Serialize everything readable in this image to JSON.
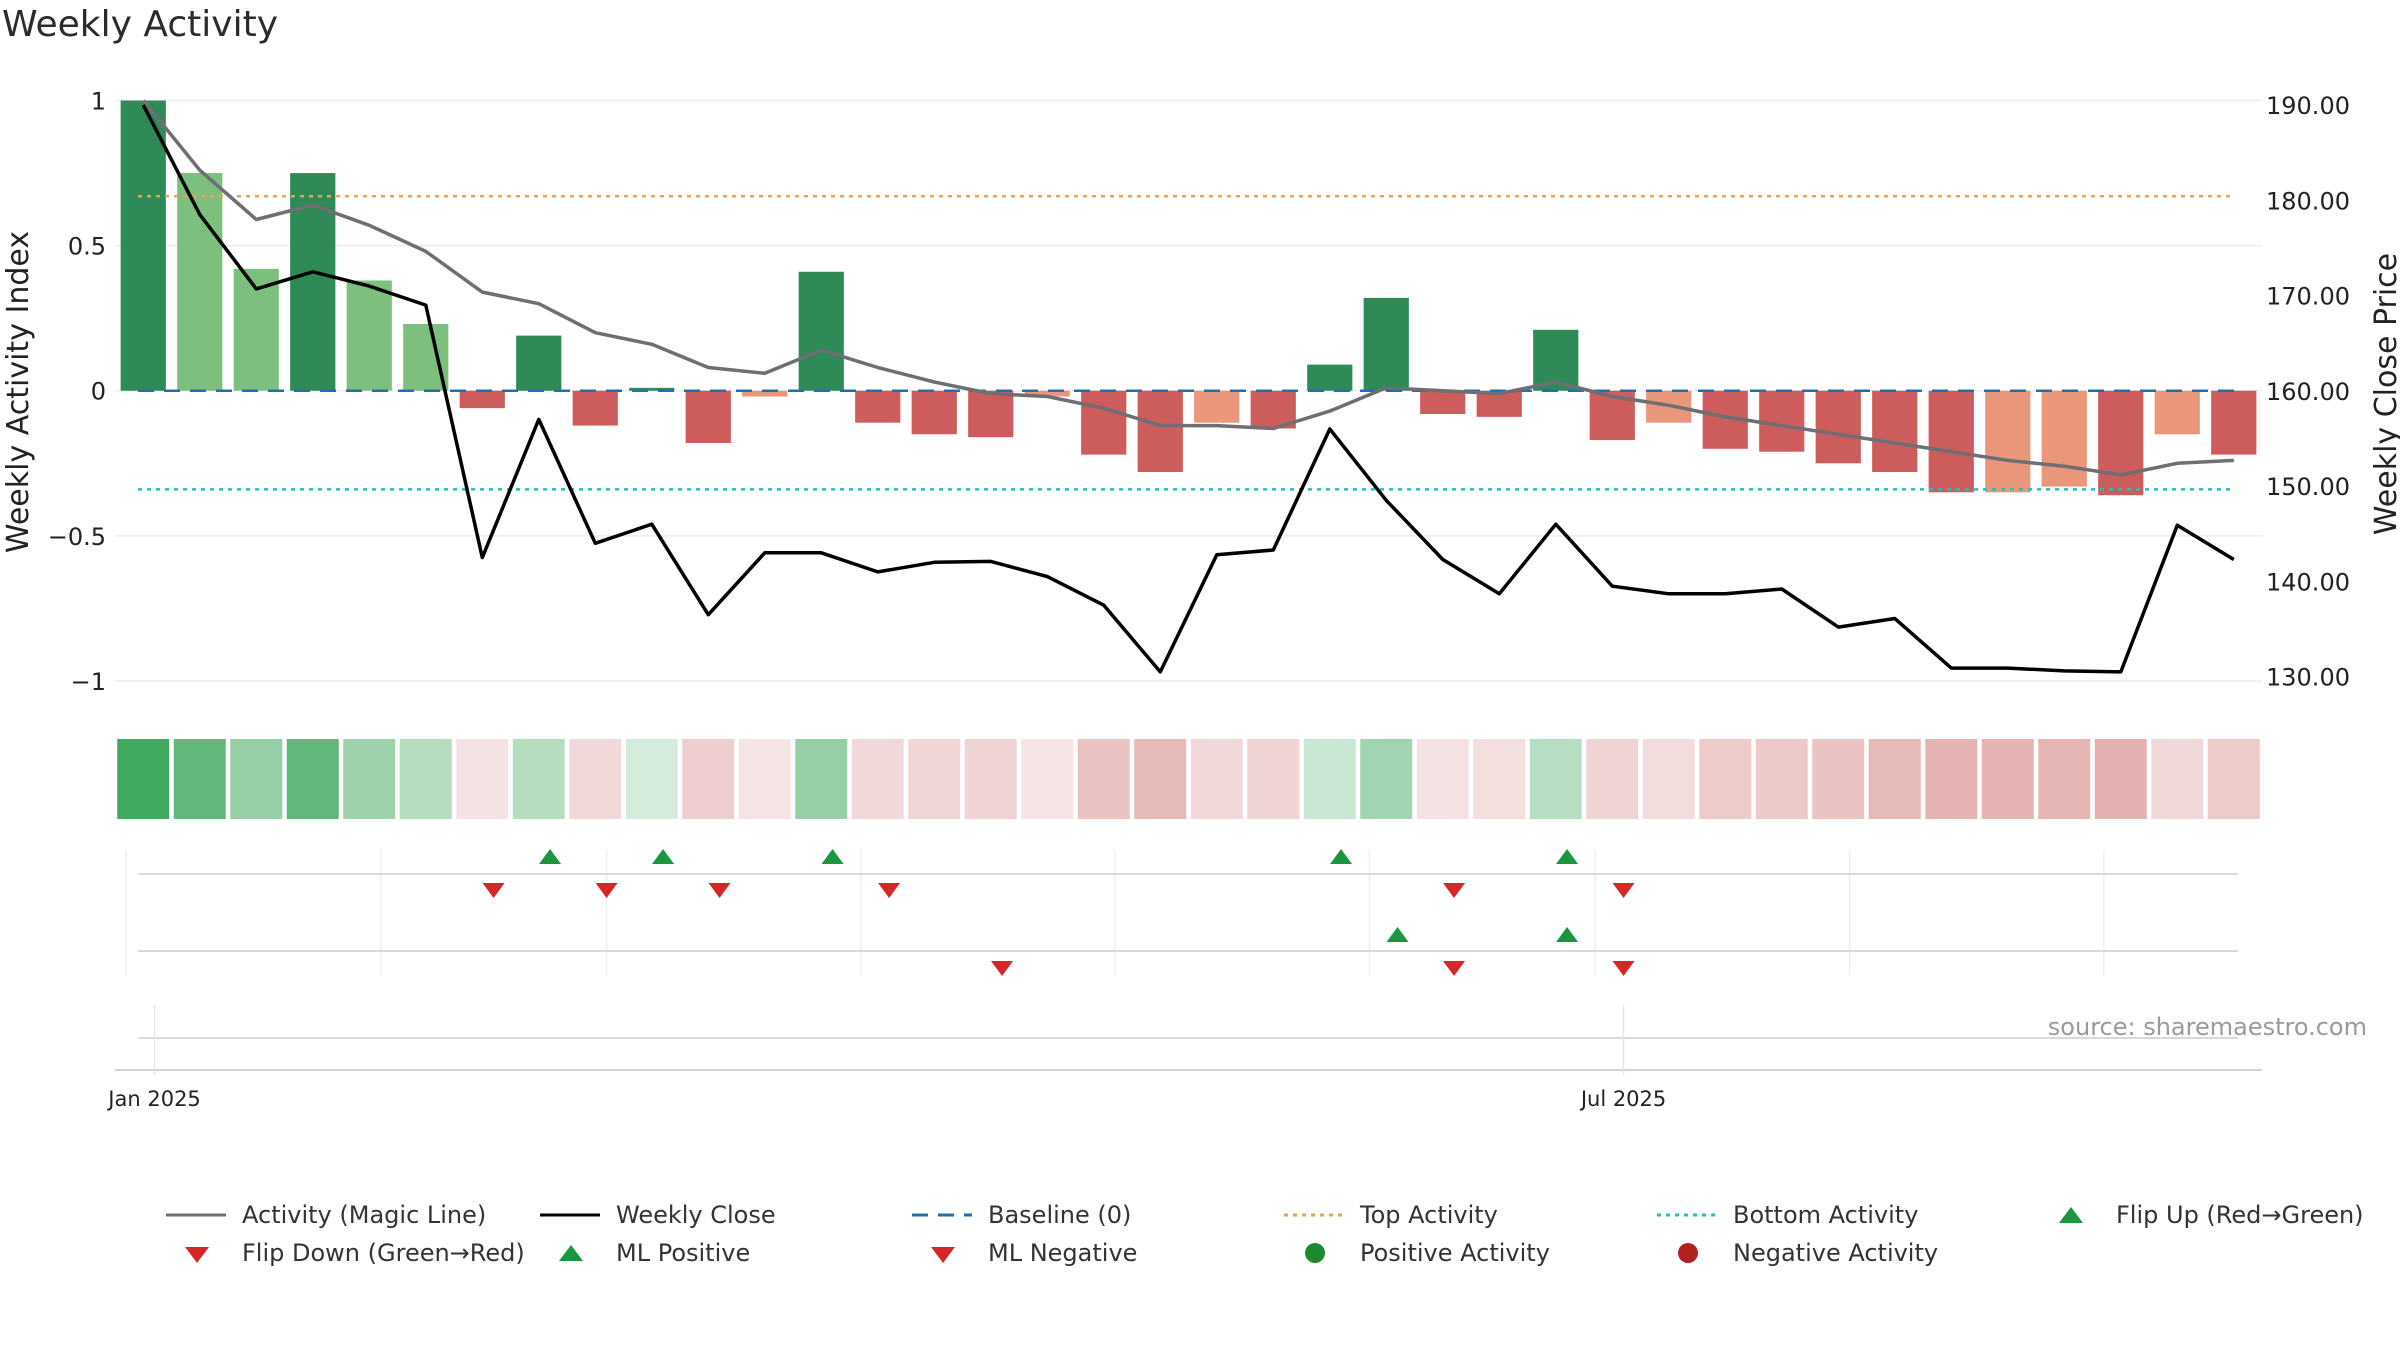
{
  "title": "Weekly Activity",
  "source": "source: sharemaestro.com",
  "colors": {
    "pos_strong": "#2e8b57",
    "pos_light": "#7dc07e",
    "neg_strong": "#cd5c5c",
    "neg_light": "#e9967a",
    "magic_line": "#6e6e73",
    "close_line": "#000000",
    "baseline": "#1f6fb2",
    "top_line": "#f0a050",
    "bottom_line": "#20c0c0",
    "flip_up": "#1a9641",
    "flip_down": "#d62728"
  },
  "chart_data": {
    "type": "bar",
    "title": "Weekly Activity",
    "ylabel": "Weekly Activity Index",
    "y2label": "Weekly Close Price",
    "ylim": [
      -1.1,
      1.05
    ],
    "y2lim": [
      126.5,
      192.0
    ],
    "yticks": [
      {
        "v": 1,
        "label": "1"
      },
      {
        "v": 0.5,
        "label": "0.5"
      },
      {
        "v": 0,
        "label": "0"
      },
      {
        "v": -0.5,
        "label": "−0.5"
      },
      {
        "v": -1,
        "label": "−1"
      }
    ],
    "y2ticks": [
      {
        "v": 190,
        "label": "190.00"
      },
      {
        "v": 180,
        "label": "180.00"
      },
      {
        "v": 170,
        "label": "170.00"
      },
      {
        "v": 160,
        "label": "160.00"
      },
      {
        "v": 150,
        "label": "150.00"
      },
      {
        "v": 140,
        "label": "140.00"
      },
      {
        "v": 130,
        "label": "130.00"
      }
    ],
    "xticks": [
      {
        "week": 0,
        "label": "Jan 2025"
      },
      {
        "week": 26,
        "label": "Jul 2025"
      }
    ],
    "top_activity": 0.67,
    "bottom_activity": -0.34,
    "baseline": 0,
    "activity": [
      1.0,
      0.75,
      0.42,
      0.75,
      0.38,
      0.23,
      -0.06,
      0.19,
      -0.12,
      0.01,
      -0.18,
      -0.02,
      0.41,
      -0.11,
      -0.15,
      -0.16,
      -0.02,
      -0.22,
      -0.28,
      -0.11,
      -0.13,
      0.09,
      0.32,
      -0.08,
      -0.09,
      0.21,
      -0.17,
      -0.11,
      -0.2,
      -0.21,
      -0.25,
      -0.28,
      -0.35,
      -0.35,
      -0.33,
      -0.36,
      -0.15,
      -0.22
    ],
    "strength": [
      "strong",
      "light",
      "light",
      "strong",
      "light",
      "light",
      "strong",
      "strong",
      "strong",
      "strong",
      "strong",
      "light",
      "strong",
      "strong",
      "strong",
      "strong",
      "light",
      "strong",
      "strong",
      "light",
      "strong",
      "strong",
      "strong",
      "strong",
      "strong",
      "strong",
      "strong",
      "light",
      "strong",
      "strong",
      "strong",
      "strong",
      "strong",
      "light",
      "light",
      "strong",
      "light",
      "strong"
    ],
    "magic_line": [
      1.0,
      0.76,
      0.59,
      0.64,
      0.57,
      0.48,
      0.34,
      0.3,
      0.2,
      0.16,
      0.08,
      0.06,
      0.14,
      0.08,
      0.03,
      -0.01,
      -0.02,
      -0.06,
      -0.12,
      -0.12,
      -0.13,
      -0.07,
      0.01,
      0.0,
      -0.01,
      0.03,
      -0.02,
      -0.05,
      -0.09,
      -0.12,
      -0.15,
      -0.18,
      -0.21,
      -0.24,
      -0.26,
      -0.29,
      -0.25,
      -0.24
    ],
    "weekly_close": [
      190.0,
      178.5,
      170.7,
      172.5,
      171.0,
      169.0,
      142.5,
      157.0,
      144.0,
      146.0,
      136.5,
      143.0,
      143.0,
      141.0,
      142.0,
      142.1,
      140.5,
      137.5,
      130.5,
      142.8,
      143.3,
      156.0,
      148.5,
      142.3,
      138.7,
      146.0,
      139.5,
      138.7,
      138.7,
      139.2,
      135.2,
      136.1,
      130.9,
      130.9,
      130.6,
      130.5,
      145.9,
      142.3
    ],
    "intensity": [
      0.9,
      0.75,
      0.5,
      0.75,
      0.47,
      0.36,
      0.2,
      0.36,
      0.26,
      0.2,
      0.34,
      0.18,
      0.5,
      0.26,
      0.29,
      0.3,
      0.18,
      0.42,
      0.48,
      0.26,
      0.3,
      0.26,
      0.45,
      0.2,
      0.22,
      0.35,
      0.3,
      0.24,
      0.36,
      0.38,
      0.42,
      0.48,
      0.52,
      0.52,
      0.5,
      0.54,
      0.26,
      0.36
    ],
    "flip_up": [
      7,
      9,
      12,
      21,
      25
    ],
    "flip_down": [
      6,
      8,
      10,
      13,
      23,
      26
    ],
    "ml_positive": [
      22,
      25
    ],
    "ml_negative": [
      15,
      23,
      26
    ],
    "positive_activity": [],
    "negative_activity": []
  },
  "legend": [
    {
      "label": "Activity (Magic Line)",
      "kind": "line-gray"
    },
    {
      "label": "Weekly Close",
      "kind": "line-black"
    },
    {
      "label": "Baseline (0)",
      "kind": "dash-blue"
    },
    {
      "label": "Top Activity",
      "kind": "dot-orange"
    },
    {
      "label": "Bottom Activity",
      "kind": "dot-cyan"
    },
    {
      "label": "Flip Up (Red→Green)",
      "kind": "tri-up"
    },
    {
      "label": "Flip Down (Green→Red)",
      "kind": "tri-down"
    },
    {
      "label": "ML Positive",
      "kind": "tri-up"
    },
    {
      "label": "ML Negative",
      "kind": "tri-down"
    },
    {
      "label": "Positive Activity",
      "kind": "dot-green"
    },
    {
      "label": "Negative Activity",
      "kind": "dot-red"
    }
  ]
}
